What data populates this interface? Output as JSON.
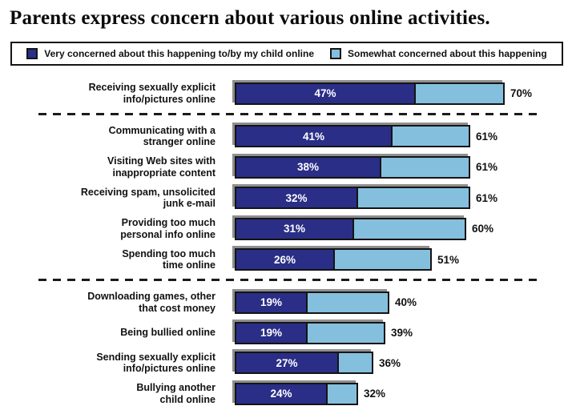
{
  "chart_data": {
    "type": "bar",
    "orientation": "horizontal",
    "stacked": true,
    "title": "Parents express concern about various online activities.",
    "legend": [
      {
        "name": "very",
        "label": "Very concerned about this happening to/by my child online",
        "color": "#2A2E87"
      },
      {
        "name": "somewhat",
        "label": "Somewhat concerned about this happening",
        "color": "#85BFDE"
      }
    ],
    "unit": "%",
    "axis": {
      "min": 0,
      "max": 75,
      "visible": false
    },
    "value_labels": {
      "very": "inside-segment",
      "total": "right-of-bar"
    },
    "groups": [
      {
        "rows": [
          {
            "label": "Receiving sexually explicit\ninfo/pictures online",
            "very_pct": 47,
            "total_pct": 70
          }
        ]
      },
      {
        "rows": [
          {
            "label": "Communicating with a\nstranger online",
            "very_pct": 41,
            "total_pct": 61
          },
          {
            "label": "Visiting Web sites with\ninappropriate content",
            "very_pct": 38,
            "total_pct": 61
          },
          {
            "label": "Receiving spam, unsolicited\njunk e-mail",
            "very_pct": 32,
            "total_pct": 61
          },
          {
            "label": "Providing too much\npersonal info online",
            "very_pct": 31,
            "total_pct": 60
          },
          {
            "label": "Spending too much\ntime online",
            "very_pct": 26,
            "total_pct": 51
          }
        ]
      },
      {
        "rows": [
          {
            "label": "Downloading games, other\nthat cost money",
            "very_pct": 19,
            "total_pct": 40
          },
          {
            "label": "Being bullied online",
            "very_pct": 19,
            "total_pct": 39
          },
          {
            "label": "Sending sexually explicit\ninfo/pictures online",
            "very_pct": 27,
            "total_pct": 36
          },
          {
            "label": "Bullying another\nchild online",
            "very_pct": 24,
            "total_pct": 32
          }
        ]
      }
    ],
    "colors": {
      "very": "#2A2E87",
      "somewhat": "#85BFDE",
      "bar_border": "#141414",
      "bar_shadow": "#8f8f8f",
      "divider": "#1b1b1b",
      "text": "#111111"
    }
  }
}
